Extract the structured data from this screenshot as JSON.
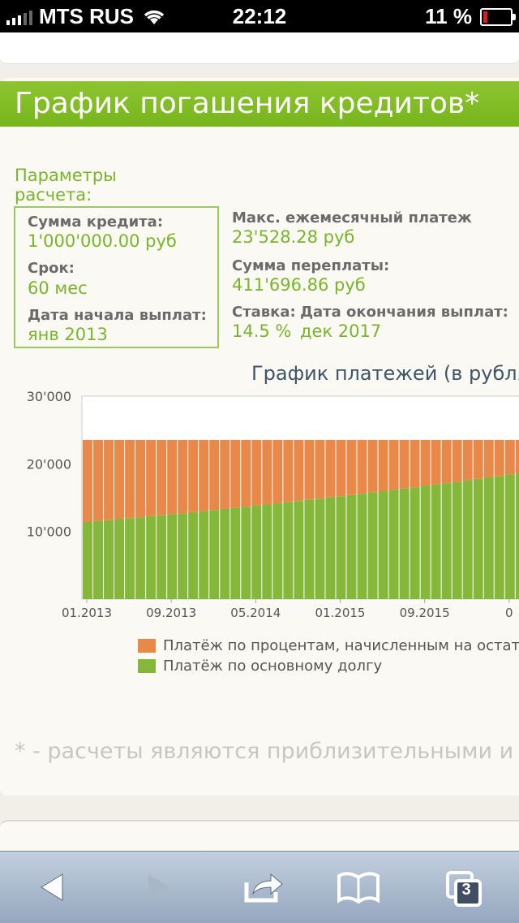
{
  "status_bar": {
    "carrier": "MTS RUS",
    "time": "22:12",
    "battery": "11 %",
    "battery_level": 0.11
  },
  "page": {
    "title": "График погашения кредитов*"
  },
  "params": {
    "heading": "Параметры расчета:",
    "loan_amount_label": "Сумма кредита:",
    "loan_amount_value": "1'000'000.00 руб",
    "term_label": "Срок:",
    "term_value": "60 мес",
    "start_label": "Дата начала выплат:",
    "start_value": "янв 2013"
  },
  "results": {
    "max_payment_label": "Макс. ежемесячный платеж",
    "max_payment_value": "23'528.28 руб",
    "overpay_label": "Сумма переплаты:",
    "overpay_value": "411'696.86 руб",
    "rate_label": "Ставка:",
    "rate_value": "14.5 %",
    "end_label": "Дата окончания выплат:",
    "end_value": "дек 2017"
  },
  "chart_data": {
    "type": "bar",
    "title": "График платежей (в рубля",
    "stacked": true,
    "y_ticks": [
      "10'000",
      "20'000",
      "30'000"
    ],
    "ylim": [
      0,
      30000
    ],
    "x_ticks": [
      "01.2013",
      "09.2013",
      "05.2014",
      "01.2015",
      "09.2015",
      "0"
    ],
    "total_payment": 23528.28,
    "principal_start": 11400,
    "principal_end_visible": 18100,
    "visible_bars": 42,
    "series": [
      {
        "name": "Платёж по процентам, начисленным на остаток",
        "color": "#e8894a"
      },
      {
        "name": "Платёж по основному долгу",
        "color": "#85b73b"
      }
    ],
    "grid": false
  },
  "footnote": "* - расчеты являются приблизительными и",
  "toolbar": {
    "tabs_count": "3"
  }
}
